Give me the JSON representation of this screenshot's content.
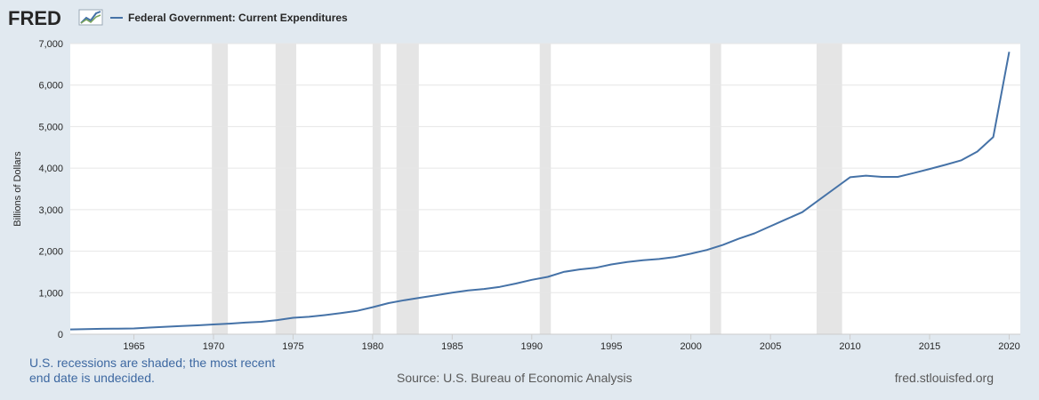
{
  "logo": {
    "text": "FRED",
    "icon": "chart-line-icon"
  },
  "legend": {
    "label": "Federal Government: Current Expenditures",
    "color": "#4572a7"
  },
  "footer": {
    "note": "U.S. recessions are shaded; the most recent end date is undecided.",
    "source": "Source: U.S. Bureau of Economic Analysis",
    "site": "fred.stlouisfed.org"
  },
  "colors": {
    "background": "#e1e9f0",
    "plot_background": "#ffffff",
    "recession": "#e5e5e5",
    "grid": "#e6e6e6",
    "line": "#4572a7"
  },
  "chart_data": {
    "type": "line",
    "title": "",
    "xlabel": "",
    "ylabel": "Billions of Dollars",
    "xlim": [
      1961.0,
      2020.7
    ],
    "ylim": [
      0,
      7000
    ],
    "x_ticks": [
      1965,
      1970,
      1975,
      1980,
      1985,
      1990,
      1995,
      2000,
      2005,
      2010,
      2015,
      2020
    ],
    "y_ticks": [
      {
        "value": 0,
        "label": "0"
      },
      {
        "value": 1000,
        "label": "1,000"
      },
      {
        "value": 2000,
        "label": "2,000"
      },
      {
        "value": 3000,
        "label": "3,000"
      },
      {
        "value": 4000,
        "label": "4,000"
      },
      {
        "value": 5000,
        "label": "5,000"
      },
      {
        "value": 6000,
        "label": "6,000"
      },
      {
        "value": 7000,
        "label": "7,000"
      }
    ],
    "grid": true,
    "recessions": [
      {
        "start": 1969.9,
        "end": 1970.9
      },
      {
        "start": 1973.9,
        "end": 1975.2
      },
      {
        "start": 1980.0,
        "end": 1980.5
      },
      {
        "start": 1981.5,
        "end": 1982.9
      },
      {
        "start": 1990.5,
        "end": 1991.2
      },
      {
        "start": 2001.2,
        "end": 2001.9
      },
      {
        "start": 2007.9,
        "end": 2009.5
      }
    ],
    "series": [
      {
        "name": "Federal Government: Current Expenditures",
        "x": [
          1961,
          1962,
          1963,
          1964,
          1965,
          1966,
          1967,
          1968,
          1969,
          1970,
          1971,
          1972,
          1973,
          1974,
          1975,
          1976,
          1977,
          1978,
          1979,
          1980,
          1981,
          1982,
          1983,
          1984,
          1985,
          1986,
          1987,
          1988,
          1989,
          1990,
          1991,
          1992,
          1993,
          1994,
          1995,
          1996,
          1997,
          1998,
          1999,
          2000,
          2001,
          2002,
          2003,
          2004,
          2005,
          2006,
          2007,
          2008,
          2009,
          2010,
          2011,
          2012,
          2013,
          2014,
          2015,
          2016,
          2017,
          2018,
          2019,
          2020
        ],
        "values": [
          115,
          125,
          130,
          135,
          140,
          160,
          180,
          200,
          215,
          235,
          255,
          280,
          300,
          340,
          395,
          420,
          460,
          510,
          560,
          650,
          750,
          820,
          880,
          940,
          1000,
          1055,
          1090,
          1140,
          1220,
          1310,
          1380,
          1500,
          1560,
          1600,
          1680,
          1740,
          1780,
          1810,
          1860,
          1940,
          2030,
          2150,
          2300,
          2430,
          2600,
          2770,
          2940,
          3220,
          3500,
          3780,
          3820,
          3790,
          3790,
          3880,
          3980,
          4080,
          4190,
          4400,
          4750,
          6800
        ]
      }
    ]
  }
}
